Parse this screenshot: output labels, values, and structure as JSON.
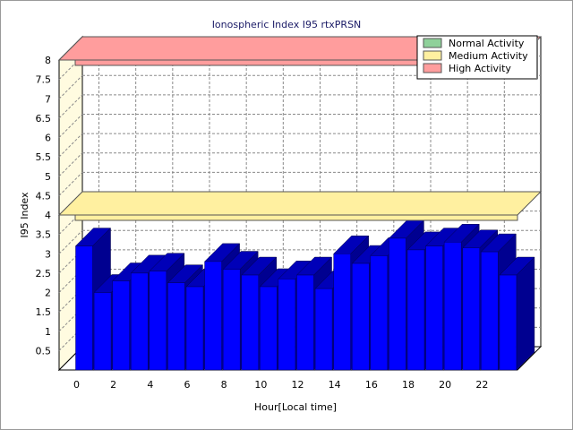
{
  "chart_data": {
    "type": "bar",
    "title": "Ionospheric Index I95 rtxPRSN",
    "xlabel": "Hour[Local time]",
    "ylabel": "I95 Index",
    "ylim": [
      0,
      8
    ],
    "y_ticks": [
      "0.5",
      "1",
      "1.5",
      "2",
      "2.5",
      "3",
      "3.5",
      "4",
      "4.5",
      "5",
      "5.5",
      "6",
      "6.5",
      "7",
      "7.5",
      "8"
    ],
    "x_ticks": [
      "0",
      "2",
      "4",
      "6",
      "8",
      "10",
      "12",
      "14",
      "16",
      "18",
      "20",
      "22"
    ],
    "grid": true,
    "three_d": true,
    "legend_position": "top-right",
    "bands": [
      {
        "name": "Normal Activity",
        "from": 0,
        "to": 2,
        "color": "#8fd19a"
      },
      {
        "name": "Medium Activity",
        "from": 4,
        "to": 4,
        "color": "#fff0a0"
      },
      {
        "name": "High Activity",
        "from": 8,
        "to": 8,
        "color": "#ff9d9d"
      }
    ],
    "series": [
      {
        "color": "#0000ff",
        "x": [
          0,
          1,
          2,
          3,
          4,
          5,
          6,
          7,
          8,
          9,
          10,
          11,
          12,
          13,
          14,
          15,
          16,
          17,
          18,
          19,
          20,
          21,
          22,
          23
        ],
        "values": [
          3.2,
          2.0,
          2.3,
          2.5,
          2.55,
          2.25,
          2.15,
          2.8,
          2.6,
          2.45,
          2.15,
          2.35,
          2.45,
          2.1,
          3.0,
          2.75,
          2.95,
          3.4,
          3.1,
          3.2,
          3.3,
          3.15,
          3.05,
          2.45
        ]
      }
    ]
  }
}
